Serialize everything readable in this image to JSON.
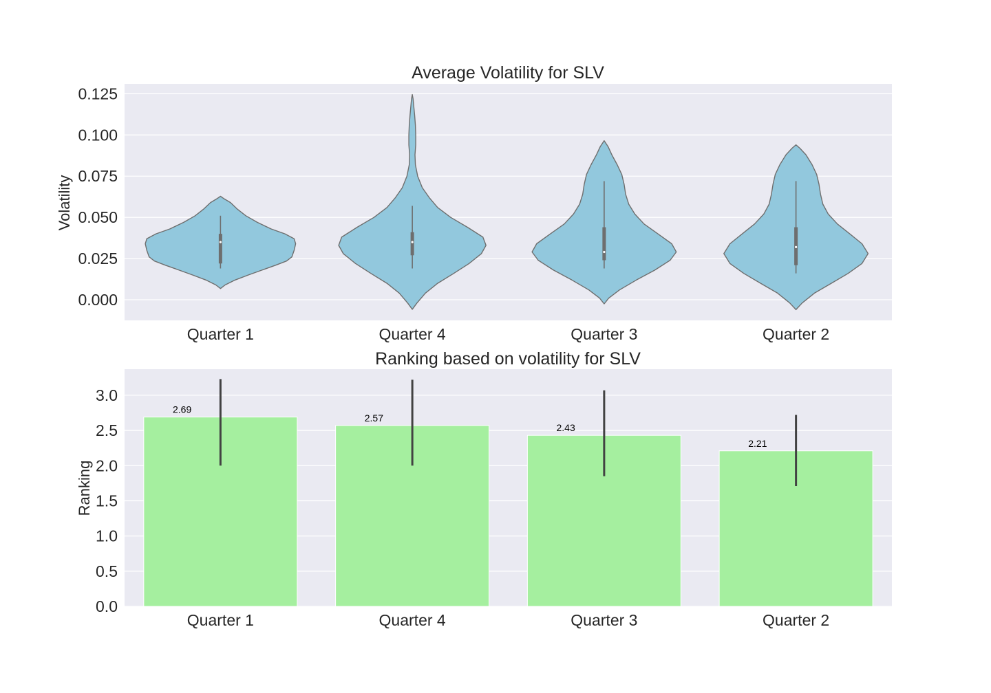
{
  "chart_data": [
    {
      "type": "violin",
      "title": "Average Volatility for SLV",
      "xlabel": "",
      "ylabel": "Volatility",
      "categories": [
        "Quarter 1",
        "Quarter 4",
        "Quarter 3",
        "Quarter 2"
      ],
      "ylim": [
        -0.0125,
        0.131
      ],
      "yticks": [
        0.0,
        0.025,
        0.05,
        0.075,
        0.1,
        0.125
      ],
      "ytick_labels": [
        "0.000",
        "0.025",
        "0.050",
        "0.075",
        "0.100",
        "0.125"
      ],
      "grid": true,
      "fill_color": "#92c8dd",
      "edge_color": "#6e6e6e",
      "violins": [
        {
          "category": "Quarter 1",
          "profile": [
            [
              0.0068,
              0
            ],
            [
              0.009,
              0.06
            ],
            [
              0.012,
              0.19
            ],
            [
              0.015,
              0.36
            ],
            [
              0.018,
              0.54
            ],
            [
              0.021,
              0.72
            ],
            [
              0.0235,
              0.86
            ],
            [
              0.026,
              0.93
            ],
            [
              0.03,
              0.96
            ],
            [
              0.034,
              0.98
            ],
            [
              0.037,
              0.96
            ],
            [
              0.04,
              0.84
            ],
            [
              0.043,
              0.66
            ],
            [
              0.047,
              0.48
            ],
            [
              0.051,
              0.33
            ],
            [
              0.055,
              0.22
            ],
            [
              0.059,
              0.13
            ],
            [
              0.0615,
              0.04
            ],
            [
              0.0628,
              0
            ]
          ],
          "whisker": [
            0.019,
            0.051
          ],
          "q1": 0.022,
          "median": 0.035,
          "q3": 0.04
        },
        {
          "category": "Quarter 4",
          "profile": [
            [
              -0.0058,
              0
            ],
            [
              -0.002,
              0.06
            ],
            [
              0.004,
              0.17
            ],
            [
              0.01,
              0.33
            ],
            [
              0.016,
              0.54
            ],
            [
              0.022,
              0.74
            ],
            [
              0.028,
              0.9
            ],
            [
              0.033,
              0.96
            ],
            [
              0.038,
              0.92
            ],
            [
              0.044,
              0.72
            ],
            [
              0.05,
              0.5
            ],
            [
              0.056,
              0.33
            ],
            [
              0.062,
              0.22
            ],
            [
              0.068,
              0.13
            ],
            [
              0.075,
              0.07
            ],
            [
              0.082,
              0.04
            ],
            [
              0.088,
              0.035
            ],
            [
              0.094,
              0.045
            ],
            [
              0.1,
              0.045
            ],
            [
              0.106,
              0.04
            ],
            [
              0.112,
              0.03
            ],
            [
              0.118,
              0.018
            ],
            [
              0.122,
              0.01
            ],
            [
              0.1245,
              0
            ]
          ],
          "whisker": [
            0.019,
            0.057
          ],
          "q1": 0.027,
          "median": 0.035,
          "q3": 0.041
        },
        {
          "category": "Quarter 3",
          "profile": [
            [
              -0.0025,
              0
            ],
            [
              0.001,
              0.06
            ],
            [
              0.006,
              0.2
            ],
            [
              0.012,
              0.42
            ],
            [
              0.018,
              0.66
            ],
            [
              0.024,
              0.86
            ],
            [
              0.029,
              0.94
            ],
            [
              0.034,
              0.88
            ],
            [
              0.04,
              0.7
            ],
            [
              0.046,
              0.52
            ],
            [
              0.052,
              0.4
            ],
            [
              0.058,
              0.32
            ],
            [
              0.064,
              0.28
            ],
            [
              0.07,
              0.26
            ],
            [
              0.076,
              0.23
            ],
            [
              0.082,
              0.17
            ],
            [
              0.088,
              0.1
            ],
            [
              0.093,
              0.05
            ],
            [
              0.0965,
              0
            ]
          ],
          "whisker": [
            0.019,
            0.072
          ],
          "q1": 0.024,
          "median": 0.029,
          "q3": 0.044
        },
        {
          "category": "Quarter 2",
          "profile": [
            [
              -0.006,
              0
            ],
            [
              -0.002,
              0.08
            ],
            [
              0.004,
              0.24
            ],
            [
              0.01,
              0.46
            ],
            [
              0.016,
              0.68
            ],
            [
              0.022,
              0.86
            ],
            [
              0.028,
              0.94
            ],
            [
              0.034,
              0.86
            ],
            [
              0.04,
              0.7
            ],
            [
              0.046,
              0.54
            ],
            [
              0.052,
              0.42
            ],
            [
              0.058,
              0.35
            ],
            [
              0.064,
              0.32
            ],
            [
              0.07,
              0.3
            ],
            [
              0.076,
              0.27
            ],
            [
              0.082,
              0.21
            ],
            [
              0.088,
              0.13
            ],
            [
              0.092,
              0.05
            ],
            [
              0.094,
              0
            ]
          ],
          "whisker": [
            0.016,
            0.072
          ],
          "q1": 0.021,
          "median": 0.032,
          "q3": 0.044
        }
      ]
    },
    {
      "type": "bar",
      "title": "Ranking based on volatility for SLV",
      "xlabel": "",
      "ylabel": "Ranking",
      "categories": [
        "Quarter 1",
        "Quarter 4",
        "Quarter 3",
        "Quarter 2"
      ],
      "values": [
        2.69,
        2.57,
        2.43,
        2.21
      ],
      "value_labels": [
        "2.69",
        "2.57",
        "2.43",
        "2.21"
      ],
      "error_bars": [
        [
          2.0,
          3.23
        ],
        [
          2.0,
          3.22
        ],
        [
          1.85,
          3.07
        ],
        [
          1.71,
          2.72
        ]
      ],
      "ylim": [
        0,
        3.37
      ],
      "yticks": [
        0.0,
        0.5,
        1.0,
        1.5,
        2.0,
        2.5,
        3.0
      ],
      "ytick_labels": [
        "0.0",
        "0.5",
        "1.0",
        "1.5",
        "2.0",
        "2.5",
        "3.0"
      ],
      "grid": true,
      "bar_color": "#a5ef9f"
    }
  ]
}
